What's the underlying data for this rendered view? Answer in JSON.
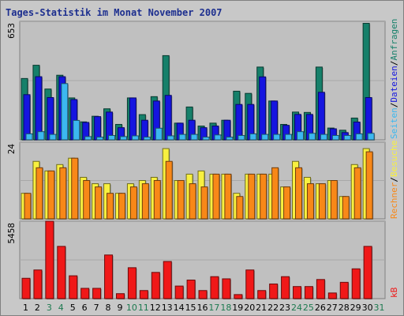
{
  "title": "Tages-Statistik im Monat November 2007",
  "colors": {
    "background": "#c8c8c8",
    "panel": "#c0c0c0",
    "anfragen": "#16806a",
    "dateien": "#1515e0",
    "seiten": "#3cb8f0",
    "besuche": "#f8f040",
    "rechner": "#f88818",
    "kb": "#f01818",
    "weekday_label": "#000000",
    "weekend_label": "#1d7a50"
  },
  "right_labels": {
    "anfragen": "Anfragen",
    "dateien": "Dateien",
    "seiten": "Seiten",
    "besuche": "Besuche",
    "rechner": "Rechner",
    "kb": "kB",
    "sep": "/"
  },
  "chart_data": [
    {
      "type": "bar",
      "title": "Tages-Statistik im Monat November 2007",
      "y_max_label": "653",
      "ylim": [
        0,
        653
      ],
      "categories": [
        "1",
        "2",
        "3",
        "4",
        "5",
        "6",
        "7",
        "8",
        "9",
        "10",
        "11",
        "12",
        "13",
        "14",
        "15",
        "16",
        "17",
        "18",
        "19",
        "20",
        "21",
        "22",
        "23",
        "24",
        "25",
        "26",
        "27",
        "28",
        "29",
        "30",
        "31"
      ],
      "weekend_days": [
        "3",
        "4",
        "10",
        "11",
        "17",
        "18",
        "24",
        "25",
        "31"
      ],
      "series": [
        {
          "name": "Anfragen",
          "values": [
            338,
            411,
            280,
            356,
            231,
            99,
            130,
            171,
            85,
            231,
            139,
            238,
            464,
            92,
            181,
            76,
            92,
            108,
            268,
            256,
            401,
            214,
            85,
            153,
            151,
            401,
            65,
            53,
            120,
            642,
            0
          ]
        },
        {
          "name": "Dateien",
          "values": [
            249,
            348,
            233,
            348,
            222,
            96,
            128,
            153,
            67,
            231,
            108,
            214,
            245,
            92,
            108,
            67,
            76,
            108,
            195,
            195,
            347,
            214,
            80,
            140,
            140,
            262,
            61,
            40,
            98,
            233,
            0
          ]
        },
        {
          "name": "Seiten",
          "values": [
            33,
            45,
            30,
            310,
            107,
            18,
            15,
            24,
            18,
            22,
            15,
            64,
            22,
            30,
            30,
            15,
            27,
            15,
            24,
            33,
            30,
            30,
            30,
            45,
            36,
            30,
            24,
            24,
            33,
            36,
            0
          ]
        }
      ]
    },
    {
      "type": "bar",
      "y_max_label": "24",
      "ylim": [
        0,
        24
      ],
      "categories": [
        "1",
        "2",
        "3",
        "4",
        "5",
        "6",
        "7",
        "8",
        "9",
        "10",
        "11",
        "12",
        "13",
        "14",
        "15",
        "16",
        "17",
        "18",
        "19",
        "20",
        "21",
        "22",
        "23",
        "24",
        "25",
        "26",
        "27",
        "28",
        "29",
        "30",
        "31"
      ],
      "series": [
        {
          "name": "Besuche",
          "values": [
            8,
            18,
            15,
            17,
            19,
            13,
            11,
            11,
            8,
            11,
            12,
            13,
            22,
            12,
            14,
            15,
            14,
            14,
            8,
            14,
            14,
            14,
            10,
            18,
            13,
            11,
            12,
            7,
            17,
            22,
            0
          ]
        },
        {
          "name": "Rechner",
          "values": [
            8,
            16,
            15,
            16,
            19,
            12,
            10,
            8,
            8,
            10,
            11,
            12,
            18,
            12,
            11,
            10,
            14,
            14,
            7,
            14,
            14,
            16,
            10,
            16,
            11,
            11,
            12,
            7,
            16,
            21,
            0
          ]
        }
      ]
    },
    {
      "type": "bar",
      "y_max_label": "5458",
      "ylim": [
        0,
        5458
      ],
      "categories": [
        "1",
        "2",
        "3",
        "4",
        "5",
        "6",
        "7",
        "8",
        "9",
        "10",
        "11",
        "12",
        "13",
        "14",
        "15",
        "16",
        "17",
        "18",
        "19",
        "20",
        "21",
        "22",
        "23",
        "24",
        "25",
        "26",
        "27",
        "28",
        "29",
        "30",
        "31"
      ],
      "series": [
        {
          "name": "kB",
          "values": [
            1434,
            2020,
            5458,
            3684,
            1610,
            725,
            725,
            3076,
            350,
            2180,
            570,
            1849,
            2620,
            886,
            1309,
            570,
            1549,
            1395,
            286,
            2020,
            570,
            1033,
            1549,
            852,
            852,
            1348,
            398,
            1150,
            2101,
            3684,
            0
          ]
        }
      ]
    }
  ]
}
